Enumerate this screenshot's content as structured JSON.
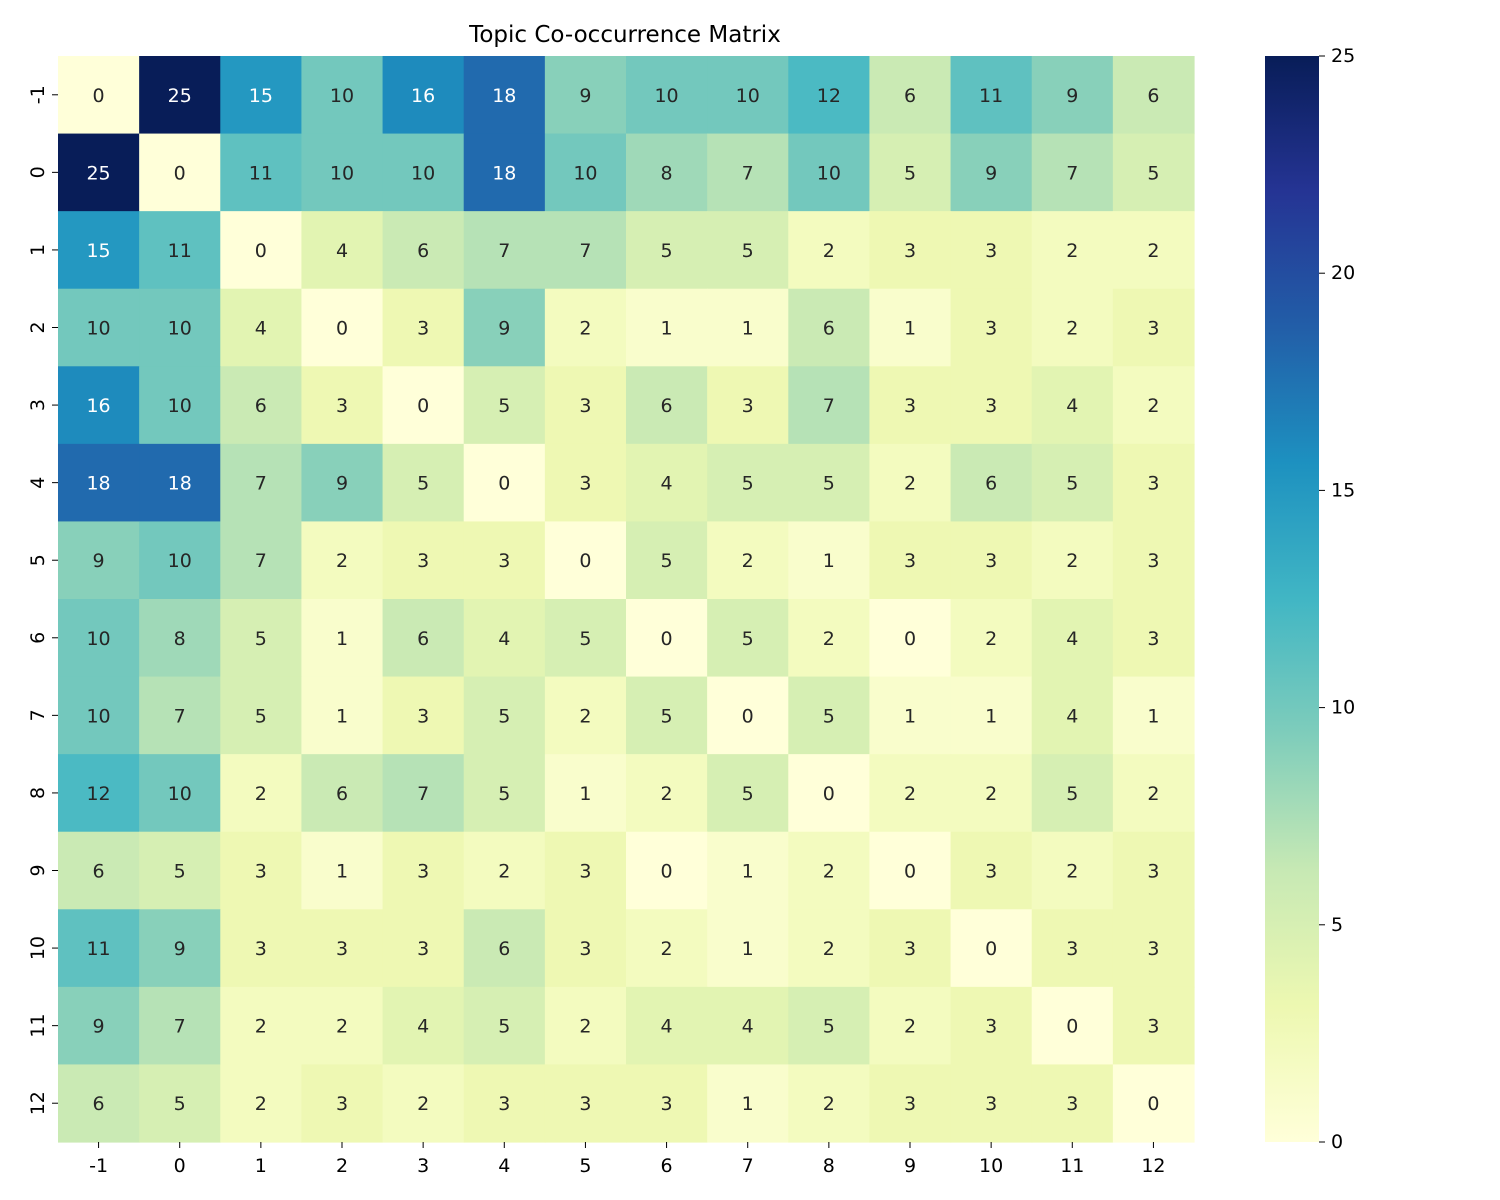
{
  "chart_data": {
    "type": "heatmap",
    "title": "Topic Co-occurrence Matrix",
    "xlabel": "",
    "ylabel": "",
    "x_labels": [
      "-1",
      "0",
      "1",
      "2",
      "3",
      "4",
      "5",
      "6",
      "7",
      "8",
      "9",
      "10",
      "11",
      "12"
    ],
    "y_labels": [
      "-1",
      "0",
      "1",
      "2",
      "3",
      "4",
      "5",
      "6",
      "7",
      "8",
      "9",
      "10",
      "11",
      "12"
    ],
    "values": [
      [
        0,
        25,
        15,
        10,
        16,
        18,
        9,
        10,
        10,
        12,
        6,
        11,
        9,
        6
      ],
      [
        25,
        0,
        11,
        10,
        10,
        18,
        10,
        8,
        7,
        10,
        5,
        9,
        7,
        5
      ],
      [
        15,
        11,
        0,
        4,
        6,
        7,
        7,
        5,
        5,
        2,
        3,
        3,
        2,
        2
      ],
      [
        10,
        10,
        4,
        0,
        3,
        9,
        2,
        1,
        1,
        6,
        1,
        3,
        2,
        3
      ],
      [
        16,
        10,
        6,
        3,
        0,
        5,
        3,
        6,
        3,
        7,
        3,
        3,
        4,
        2
      ],
      [
        18,
        18,
        7,
        9,
        5,
        0,
        3,
        4,
        5,
        5,
        2,
        6,
        5,
        3
      ],
      [
        9,
        10,
        7,
        2,
        3,
        3,
        0,
        5,
        2,
        1,
        3,
        3,
        2,
        3
      ],
      [
        10,
        8,
        5,
        1,
        6,
        4,
        5,
        0,
        5,
        2,
        0,
        2,
        4,
        3
      ],
      [
        10,
        7,
        5,
        1,
        3,
        5,
        2,
        5,
        0,
        5,
        1,
        1,
        4,
        1
      ],
      [
        12,
        10,
        2,
        6,
        7,
        5,
        1,
        2,
        5,
        0,
        2,
        2,
        5,
        2
      ],
      [
        6,
        5,
        3,
        1,
        3,
        2,
        3,
        0,
        1,
        2,
        0,
        3,
        2,
        3
      ],
      [
        11,
        9,
        3,
        3,
        3,
        6,
        3,
        2,
        1,
        2,
        3,
        0,
        3,
        3
      ],
      [
        9,
        7,
        2,
        2,
        4,
        5,
        2,
        4,
        4,
        5,
        2,
        3,
        0,
        3
      ],
      [
        6,
        5,
        2,
        3,
        2,
        3,
        3,
        3,
        1,
        2,
        3,
        3,
        3,
        0
      ]
    ],
    "colorbar": {
      "min": 0,
      "max": 25,
      "ticks": [
        0,
        5,
        10,
        15,
        20,
        25
      ],
      "colormap": "YlGnBu"
    },
    "annotations": true,
    "grid": false
  },
  "colors": {
    "ylgnbu": [
      "#ffffd9",
      "#edf8b1",
      "#c7e9b4",
      "#7fcdbb",
      "#41b6c4",
      "#1d91c0",
      "#225ea8",
      "#253494",
      "#081d58"
    ],
    "text_dark": "#262626",
    "text_light": "#ffffff"
  }
}
